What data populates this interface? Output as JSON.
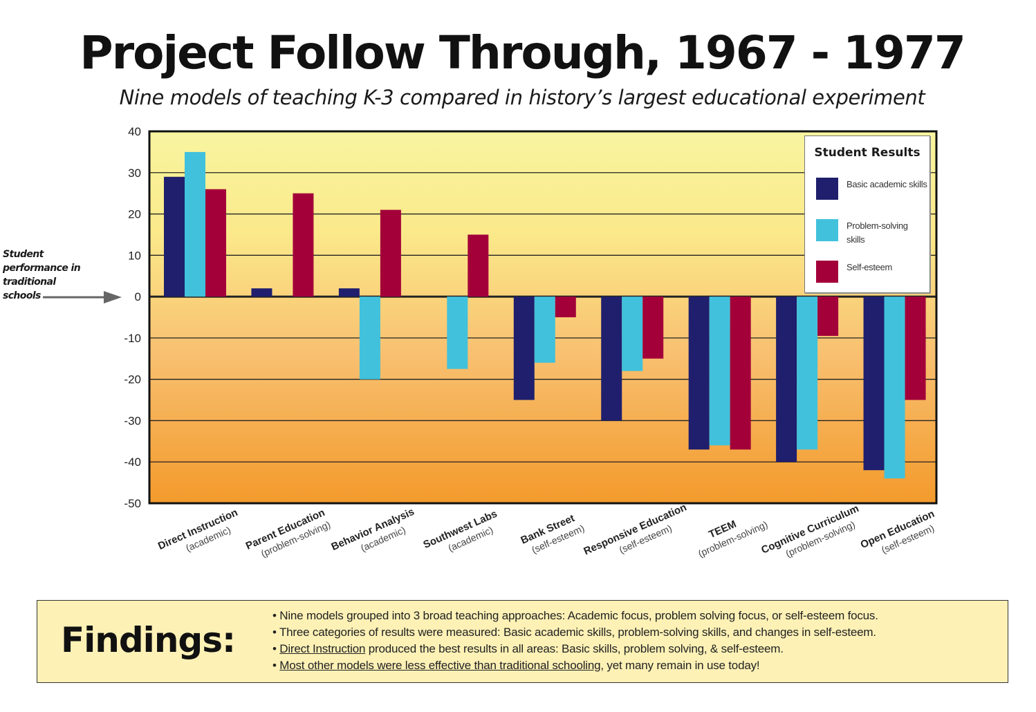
{
  "chart_data": {
    "type": "bar",
    "title": "Project Follow Through, 1967 - 1977",
    "subtitle": "Nine models of teaching K-3 compared in history’s largest educational experiment",
    "categories": [
      {
        "name": "Direct Instruction",
        "group": "(academic)"
      },
      {
        "name": "Parent Education",
        "group": "(problem-solving)"
      },
      {
        "name": "Behavior Analysis",
        "group": "(academic)"
      },
      {
        "name": "Southwest Labs",
        "group": "(academic)"
      },
      {
        "name": "Bank Street",
        "group": "(self-esteem)"
      },
      {
        "name": "Responsive Education",
        "group": "(self-esteem)"
      },
      {
        "name": "TEEM",
        "group": "(problem-solving)"
      },
      {
        "name": "Cognitive Curriculum",
        "group": "(problem-solving)"
      },
      {
        "name": "Open Education",
        "group": "(self-esteem)"
      }
    ],
    "series": [
      {
        "name": "Basic academic skills",
        "color": "#1f1f6e",
        "values": [
          29,
          2,
          2,
          0,
          -25,
          -30,
          -37,
          -40,
          -42
        ]
      },
      {
        "name": "Problem-solving skills",
        "color": "#41c1dc",
        "values": [
          35,
          0,
          -20,
          -17.5,
          -16,
          -18,
          -36,
          -37,
          -44
        ]
      },
      {
        "name": "Self-esteem",
        "color": "#a3003a",
        "values": [
          26,
          25,
          21,
          15,
          -5,
          -15,
          -37,
          -9.5,
          -25
        ]
      }
    ],
    "ylim": [
      -50,
      40
    ],
    "yticks": [
      40,
      30,
      20,
      10,
      0,
      -10,
      -20,
      -30,
      -40,
      -50
    ],
    "grid": true,
    "baseline_annotation": "Student performance in traditional schools",
    "legend": {
      "title": "Student Results",
      "position": "top-right"
    }
  },
  "legend_labels": {
    "basic": "Basic academic skills",
    "problem": "Problem-solving skills",
    "esteem": "Self-esteem"
  },
  "findings": {
    "heading": "Findings:",
    "items": [
      {
        "pre": "• Nine models grouped into 3 broad teaching approaches:  Academic focus, problem solving focus, or self-esteem focus.",
        "u": "",
        "post": ""
      },
      {
        "pre": "• Three categories of results were measured:  Basic academic skills, problem-solving skills, and changes in self-esteem.",
        "u": "",
        "post": ""
      },
      {
        "pre": "• ",
        "u": "Direct Instruction",
        "post": " produced the best results in all areas:  Basic skills, problem solving, & self-esteem."
      },
      {
        "pre": "• ",
        "u": "Most other models were less effective than traditional schooling",
        "post": ", yet many remain in use today!"
      }
    ]
  }
}
